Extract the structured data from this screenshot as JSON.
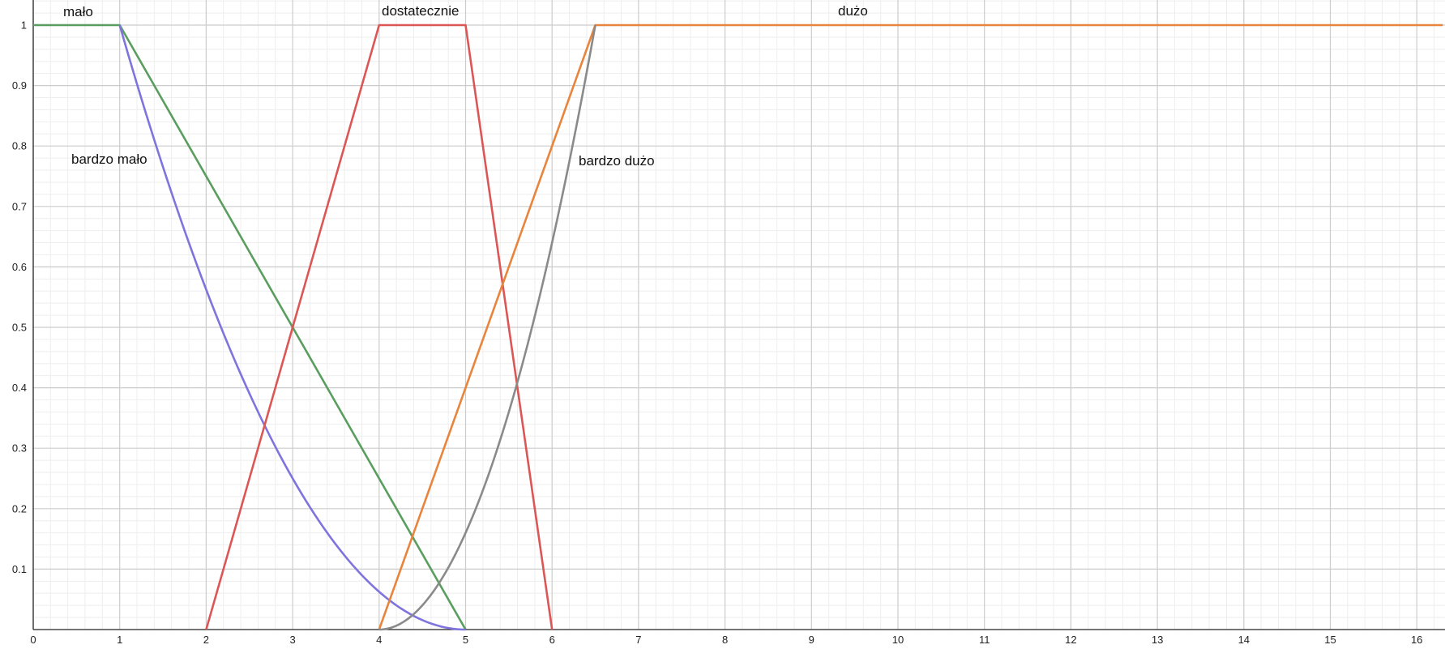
{
  "chart_data": {
    "type": "line",
    "title": "",
    "xlabel": "",
    "ylabel": "",
    "xlim": [
      0,
      16.3
    ],
    "ylim": [
      0,
      1
    ],
    "grid": true,
    "x_ticks": [
      "0",
      "1",
      "2",
      "3",
      "4",
      "5",
      "6",
      "7",
      "8",
      "9",
      "10",
      "11",
      "12",
      "13",
      "14",
      "15",
      "16"
    ],
    "y_ticks": [
      "0.1",
      "0.2",
      "0.3",
      "0.4",
      "0.5",
      "0.6",
      "0.7",
      "0.8",
      "0.9",
      "1"
    ],
    "series": [
      {
        "name": "mało",
        "color": "#5a9e5f",
        "points": [
          [
            0,
            1
          ],
          [
            1,
            1
          ],
          [
            5,
            0
          ]
        ]
      },
      {
        "name": "bardzo mało",
        "color": "#7f74de",
        "points": [
          [
            1,
            1
          ],
          [
            1.5,
            0.7656
          ],
          [
            2,
            0.5625
          ],
          [
            2.5,
            0.3906
          ],
          [
            3,
            0.25
          ],
          [
            3.5,
            0.1406
          ],
          [
            4,
            0.0625
          ],
          [
            4.5,
            0.0156
          ],
          [
            5,
            0
          ]
        ]
      },
      {
        "name": "dostatecznie",
        "color": "#dc5656",
        "points": [
          [
            2,
            0
          ],
          [
            4,
            1
          ],
          [
            5,
            1
          ],
          [
            6,
            0
          ]
        ]
      },
      {
        "name": "dużo",
        "color": "#e8843c",
        "points": [
          [
            4,
            0
          ],
          [
            6.5,
            1
          ],
          [
            16.3,
            1
          ]
        ]
      },
      {
        "name": "bardzo dużo",
        "color": "#8a8a8a",
        "points": [
          [
            4,
            0
          ],
          [
            4.5,
            0.04
          ],
          [
            5,
            0.16
          ],
          [
            5.5,
            0.36
          ],
          [
            6,
            0.64
          ],
          [
            6.5,
            1
          ]
        ]
      }
    ]
  },
  "labels": {
    "malo": "mało",
    "bardzo_malo": "bardzo mało",
    "dostatecznie": "dostatecznie",
    "duzo": "dużo",
    "bardzo_duzo": "bardzo dużo"
  }
}
